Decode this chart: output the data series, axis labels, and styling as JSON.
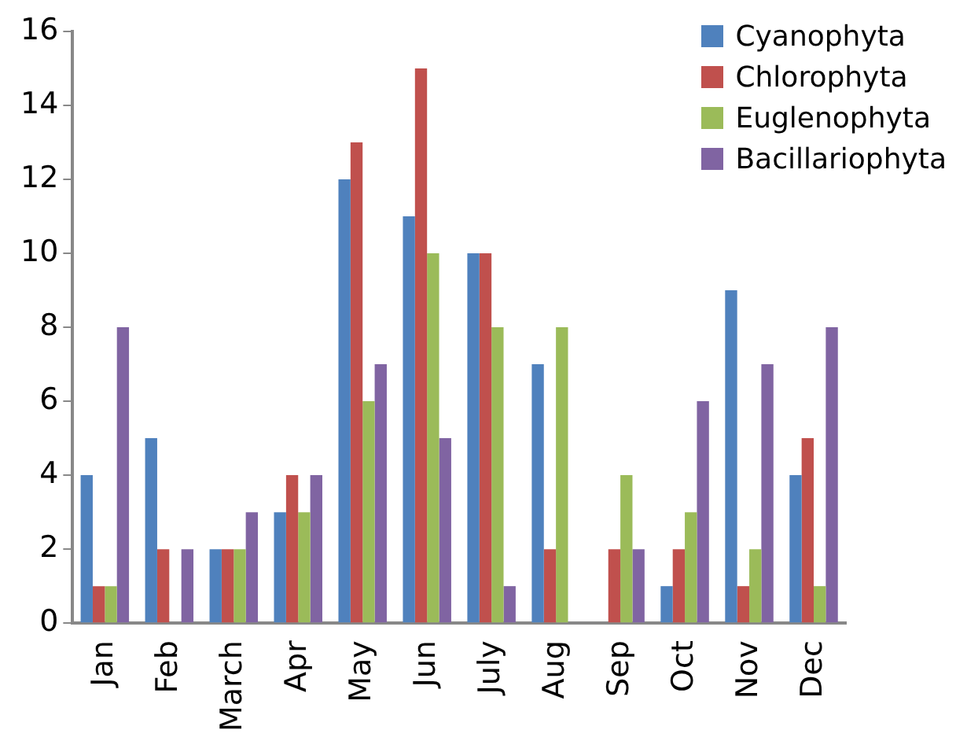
{
  "chart_data": {
    "type": "bar",
    "categories": [
      "Jan",
      "Feb",
      "March",
      "Apr",
      "May",
      "Jun",
      "July",
      "Aug",
      "Sep",
      "Oct",
      "Nov",
      "Dec"
    ],
    "series": [
      {
        "name": "Cyanophyta",
        "color": "#4f81bd",
        "values": [
          4,
          5,
          2,
          3,
          12,
          11,
          10,
          7,
          0,
          1,
          9,
          4
        ]
      },
      {
        "name": "Chlorophyta",
        "color": "#c0504d",
        "values": [
          1,
          2,
          2,
          4,
          13,
          15,
          10,
          2,
          2,
          2,
          1,
          5
        ]
      },
      {
        "name": "Euglenophyta",
        "color": "#9bbb59",
        "values": [
          1,
          0,
          2,
          3,
          6,
          10,
          8,
          8,
          4,
          3,
          2,
          1
        ]
      },
      {
        "name": "Bacillariophyta",
        "color": "#8064a2",
        "values": [
          8,
          2,
          3,
          4,
          7,
          5,
          1,
          0,
          2,
          6,
          7,
          8
        ]
      }
    ],
    "ylim": [
      0,
      16
    ],
    "yticks": [
      0,
      2,
      4,
      6,
      8,
      10,
      12,
      14,
      16
    ],
    "grid": false,
    "legend": "top right"
  }
}
